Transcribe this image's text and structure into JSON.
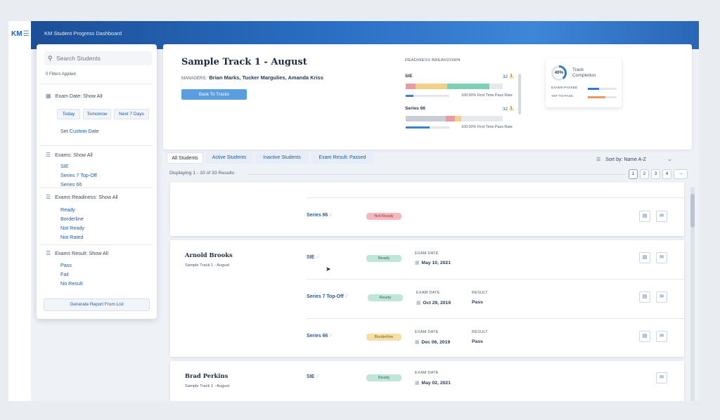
{
  "app": {
    "logo": "KM",
    "menu_icon": "hamburger-icon",
    "title": "KM Student Progress Dashboard"
  },
  "colors": {
    "accent": "#1f5bb0",
    "topbar": "#2a6fc4",
    "ready": "#bfe6d9",
    "not_ready": "#f5b8bd",
    "borderline": "#f6dfa6"
  },
  "sidebar": {
    "search_placeholder": "Search Students",
    "filters_applied": "0 Filters Applied",
    "exam_date": {
      "label": "Exam Date: Show All",
      "chips": [
        "Today",
        "Tomorrow",
        "Next 7 Days"
      ],
      "custom": "Set Custom Date"
    },
    "exams": {
      "label": "Exams: Show All",
      "items": [
        "SIE",
        "Series 7 Top-Off",
        "Series 66"
      ]
    },
    "readiness": {
      "label": "Exams Readiness: Show All",
      "items": [
        "Ready",
        "Borderline",
        "Not Ready",
        "Not Rated"
      ]
    },
    "result": {
      "label": "Exams Result: Show All",
      "items": [
        "Pass",
        "Fail",
        "No Result"
      ]
    },
    "generate": "Generate Report From List"
  },
  "header": {
    "title": "Sample Track 1 - August",
    "managers_label": "MANAGERS:",
    "managers": "Brian Marks, Tucker Margulies, Amanda Kriss",
    "back": "Back To Tracks",
    "readiness_title": "READINESS BREAKDOWN",
    "readiness": [
      {
        "name": "SIE",
        "count": "32",
        "rate": "100.00% First Time Pass Rate",
        "mini_progress": 0.18,
        "segments": [
          {
            "color": "#e79ba2",
            "pct": 10
          },
          {
            "color": "#f1d08a",
            "pct": 33
          },
          {
            "color": "#7fcfb6",
            "pct": 43
          },
          {
            "color": "#e6e9ee",
            "pct": 14
          }
        ]
      },
      {
        "name": "Series 66",
        "count": "32",
        "rate": "100.00% First Time Pass Rate",
        "mini_progress": 0.55,
        "segments": [
          {
            "color": "#c9ced6",
            "pct": 41
          },
          {
            "color": "#e79ba2",
            "pct": 10
          },
          {
            "color": "#f1d08a",
            "pct": 6
          },
          {
            "color": "#e6e9ee",
            "pct": 43
          }
        ]
      }
    ],
    "completion": {
      "percent": "40%",
      "label": "Track Completion",
      "rows": [
        {
          "label": "EXAMS PASSED",
          "value": 0.4,
          "color": "#2f7ad0"
        },
        {
          "label": "YET TO PASS",
          "value": 0.6,
          "color": "#e39a66"
        }
      ]
    }
  },
  "tabs": [
    "All Students",
    "Active Students",
    "Inactive Students",
    "Exam Result: Passed"
  ],
  "sort": "Sort by: Name A-Z",
  "results": "Displaying 1 - 10 of 33 Results",
  "pagination": [
    "1",
    "2",
    "3",
    "4",
    "→"
  ],
  "labels": {
    "exam_date": "EXAM DATE",
    "result": "RESULT"
  },
  "students": [
    {
      "name": "",
      "track": "",
      "rows": [
        {
          "exam": "Series 66",
          "status": "Not Ready"
        }
      ]
    },
    {
      "name": "Arnold Brooks",
      "track": "Sample Track 1 - August",
      "rows": [
        {
          "exam": "SIE",
          "status": "Ready",
          "date": "May 10, 2021"
        },
        {
          "exam": "Series 7 Top-Off",
          "status": "Ready",
          "date": "Oct 29, 2019",
          "result": "Pass"
        },
        {
          "exam": "Series 66",
          "status": "Borderline",
          "date": "Dec 06, 2019",
          "result": "Pass"
        }
      ]
    },
    {
      "name": "Brad Perkins",
      "track": "Sample Track 1 - August",
      "rows": [
        {
          "exam": "SIE",
          "status": "Ready",
          "date": "May 02, 2021"
        }
      ]
    }
  ]
}
